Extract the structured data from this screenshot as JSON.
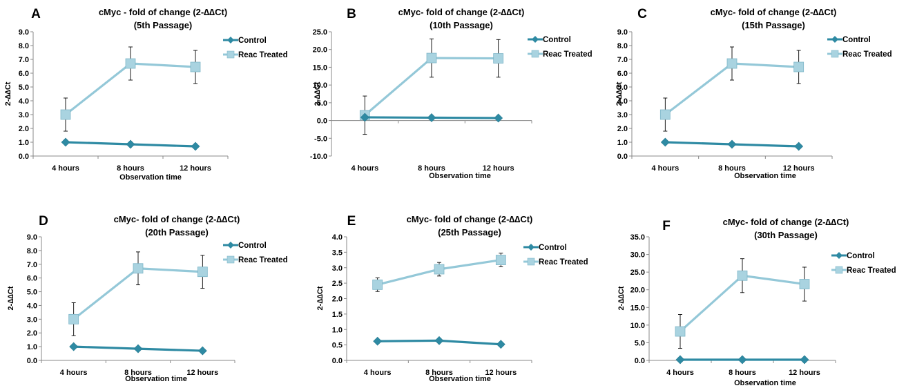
{
  "colors": {
    "control": "#2e8aa3",
    "treated": "#94c8d8",
    "axis": "#888888",
    "error": "#000000"
  },
  "legend": {
    "control": "Control",
    "treated": "Reac Treated"
  },
  "chart_data": [
    {
      "panel": "A",
      "type": "line",
      "title": [
        "cMyc - fold of change (2-∆∆Ct)",
        "(5th Passage)"
      ],
      "xlabel": "Observation time",
      "ylabel": "2-∆∆Ct",
      "categories": [
        "4 hours",
        "8 hours",
        "12 hours"
      ],
      "ylim": [
        0,
        9
      ],
      "ytick_step": 1,
      "ytick_labels": [
        "0.0",
        "1.0",
        "2.0",
        "3.0",
        "4.0",
        "5.0",
        "6.0",
        "7.0",
        "8.0",
        "9.0"
      ],
      "grid": false,
      "legend_position": "top-right",
      "series": [
        {
          "name": "Control",
          "marker": "diamond",
          "values": [
            1.0,
            0.85,
            0.7
          ],
          "errors": [
            0,
            0,
            0
          ]
        },
        {
          "name": "Reac Treated",
          "marker": "square",
          "values": [
            3.0,
            6.7,
            6.45
          ],
          "errors": [
            1.2,
            1.2,
            1.2
          ]
        }
      ]
    },
    {
      "panel": "B",
      "type": "line",
      "title": [
        "cMyc- fold of change (2-∆∆Ct)",
        "(10th Passage)"
      ],
      "xlabel": "Observation time",
      "ylabel": "2-∆∆Ct",
      "categories": [
        "4 hours",
        "8 hours",
        "12 hours"
      ],
      "ylim": [
        -10,
        25
      ],
      "ytick_step": 5,
      "ytick_labels": [
        "-10.0",
        "-5.0",
        "0.0",
        "5.0",
        "10.0",
        "15.0",
        "20.0",
        "25.0"
      ],
      "grid": false,
      "legend_position": "top-right",
      "series": [
        {
          "name": "Control",
          "marker": "diamond",
          "values": [
            0.9,
            0.8,
            0.7
          ],
          "errors": [
            0,
            0,
            0
          ]
        },
        {
          "name": "Reac Treated",
          "marker": "square",
          "values": [
            1.5,
            17.6,
            17.5
          ],
          "errors": [
            5.4,
            5.4,
            5.3
          ]
        }
      ]
    },
    {
      "panel": "C",
      "type": "line",
      "title": [
        "cMyc- fold of change (2-∆∆Ct)",
        "(15th Passage)"
      ],
      "xlabel": "Observation time",
      "ylabel": "2-∆∆Ct",
      "categories": [
        "4 hours",
        "8 hours",
        "12 hours"
      ],
      "ylim": [
        0,
        9
      ],
      "ytick_step": 1,
      "ytick_labels": [
        "0.0",
        "1.0",
        "2.0",
        "3.0",
        "4.0",
        "5.0",
        "6.0",
        "7.0",
        "8.0",
        "9.0"
      ],
      "grid": false,
      "legend_position": "top-right",
      "series": [
        {
          "name": "Control",
          "marker": "diamond",
          "values": [
            1.0,
            0.85,
            0.7
          ],
          "errors": [
            0,
            0,
            0
          ]
        },
        {
          "name": "Reac Treated",
          "marker": "square",
          "values": [
            3.0,
            6.7,
            6.45
          ],
          "errors": [
            1.2,
            1.2,
            1.2
          ]
        }
      ]
    },
    {
      "panel": "D",
      "type": "line",
      "title": [
        "cMyc- fold of change (2-∆∆Ct)",
        "(20th Passage)"
      ],
      "xlabel": "Observation time",
      "ylabel": "2-∆∆Ct",
      "categories": [
        "4 hours",
        "8 hours",
        "12 hours"
      ],
      "ylim": [
        0,
        9
      ],
      "ytick_step": 1,
      "ytick_labels": [
        "0.0",
        "1.0",
        "2.0",
        "3.0",
        "4.0",
        "5.0",
        "6.0",
        "7.0",
        "8.0",
        "9.0"
      ],
      "grid": false,
      "legend_position": "top-right",
      "series": [
        {
          "name": "Control",
          "marker": "diamond",
          "values": [
            1.0,
            0.85,
            0.7
          ],
          "errors": [
            0,
            0,
            0
          ]
        },
        {
          "name": "Reac Treated",
          "marker": "square",
          "values": [
            3.0,
            6.7,
            6.45
          ],
          "errors": [
            1.2,
            1.2,
            1.2
          ]
        }
      ]
    },
    {
      "panel": "E",
      "type": "line",
      "title": [
        "cMyc- fold of change (2-∆∆Ct)",
        "(25th Passage)"
      ],
      "xlabel": "Observation time",
      "ylabel": "2-∆∆Ct",
      "categories": [
        "4 hours",
        "8 hours",
        "12 hours"
      ],
      "ylim": [
        0,
        4
      ],
      "ytick_step": 0.5,
      "ytick_labels": [
        "0.0",
        "0.5",
        "1.0",
        "1.5",
        "2.0",
        "2.5",
        "3.0",
        "3.5",
        "4.0"
      ],
      "grid": false,
      "legend_position": "top-right",
      "series": [
        {
          "name": "Control",
          "marker": "diamond",
          "values": [
            0.62,
            0.64,
            0.52
          ],
          "errors": [
            0,
            0,
            0
          ]
        },
        {
          "name": "Reac Treated",
          "marker": "square",
          "values": [
            2.45,
            2.95,
            3.25
          ],
          "errors": [
            0.22,
            0.22,
            0.22
          ]
        }
      ]
    },
    {
      "panel": "F",
      "type": "line",
      "title": [
        "cMyc- fold of change (2-∆∆Ct)",
        "(30th Passage)"
      ],
      "xlabel": "Observation time",
      "ylabel": "2-∆∆Ct",
      "categories": [
        "4 hours",
        "8 hours",
        "12 hours"
      ],
      "ylim": [
        0,
        35
      ],
      "ytick_step": 5,
      "ytick_labels": [
        "0.0",
        "5.0",
        "10.0",
        "15.0",
        "20.0",
        "25.0",
        "30.0",
        "35.0"
      ],
      "grid": false,
      "legend_position": "top-right",
      "series": [
        {
          "name": "Control",
          "marker": "diamond",
          "values": [
            0.2,
            0.2,
            0.2
          ],
          "errors": [
            0,
            0,
            0
          ]
        },
        {
          "name": "Reac Treated",
          "marker": "square",
          "values": [
            8.2,
            24.0,
            21.6
          ],
          "errors": [
            4.8,
            4.8,
            4.8
          ]
        }
      ]
    }
  ]
}
